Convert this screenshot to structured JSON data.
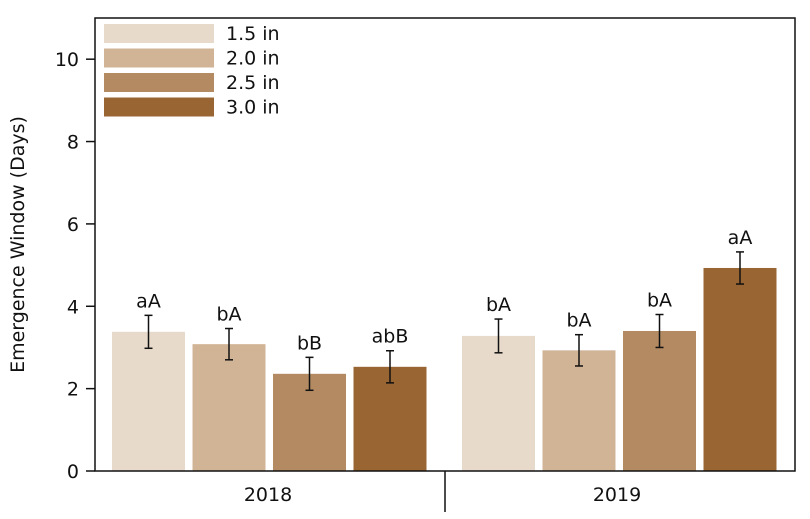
{
  "chart_data": {
    "type": "bar",
    "ylabel": "Emergence Window (Days)",
    "xlabel": "",
    "ylim": [
      0,
      11
    ],
    "yticks": [
      0,
      2,
      4,
      6,
      8,
      10
    ],
    "grid": false,
    "legend_position": "top-left",
    "categories": [
      "2018",
      "2019"
    ],
    "series": [
      {
        "name": "1.5 in",
        "color": "#e8dacb",
        "values": [
          3.38,
          3.28
        ],
        "errors": [
          0.4,
          0.41
        ],
        "letters": [
          "aA",
          "bA"
        ]
      },
      {
        "name": "2.0 in",
        "color": "#d1b396",
        "values": [
          3.08,
          2.93
        ],
        "errors": [
          0.38,
          0.38
        ],
        "letters": [
          "bA",
          "bA"
        ]
      },
      {
        "name": "2.5 in",
        "color": "#b38a62",
        "values": [
          2.36,
          3.4
        ],
        "errors": [
          0.4,
          0.4
        ],
        "letters": [
          "bB",
          "bA"
        ]
      },
      {
        "name": "3.0 in",
        "color": "#996532",
        "values": [
          2.53,
          4.93
        ],
        "errors": [
          0.39,
          0.39
        ],
        "letters": [
          "abB",
          "aA"
        ]
      }
    ]
  }
}
